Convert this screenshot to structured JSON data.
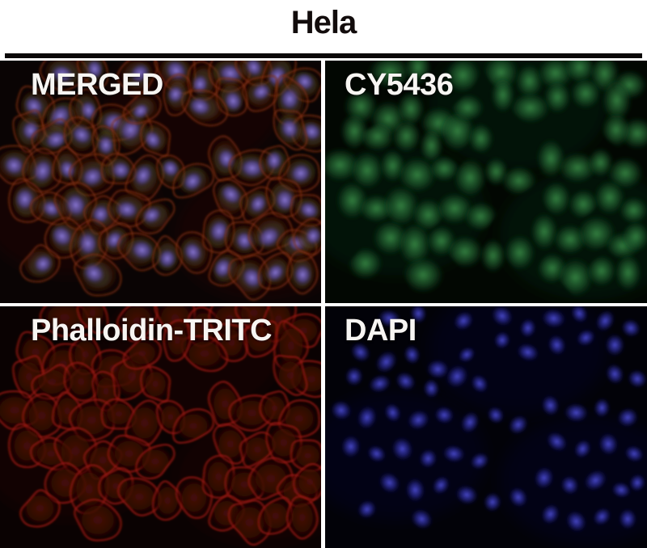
{
  "figure": {
    "title": "Hela"
  },
  "panels": [
    {
      "id": "merged",
      "label": "MERGED",
      "channel": "merged",
      "bg": "#0a0404"
    },
    {
      "id": "cy5436",
      "label": "CY5436",
      "channel": "green",
      "bg": "#020702"
    },
    {
      "id": "phalloidin-tritc",
      "label": "Phalloidin-TRITC",
      "channel": "red",
      "bg": "#0a0202"
    },
    {
      "id": "dapi",
      "label": "DAPI",
      "channel": "blue",
      "bg": "#020208"
    }
  ],
  "colors": {
    "title_text": "#120c0c",
    "label_text": "#f7f5f2",
    "rule": "#0b0707",
    "merged": {
      "body_core": "rgba(110,48,26,0.50)",
      "body_mid": "rgba(84,32,16,0.40)",
      "rim": "#7c2a14",
      "nucleus_core": "rgba(138,120,216,0.95)",
      "nucleus_mid": "rgba(90,76,176,0.65)",
      "green_tint": "rgba(70,150,80,0.16)",
      "ambient": "rgba(70,20,10,0.18)"
    },
    "green": {
      "core": "rgba(62,150,76,0.85)",
      "mid": "rgba(32,96,48,0.55)",
      "ambient": "rgba(30,90,40,0.14)"
    },
    "red": {
      "core": "rgba(74,14,8,0.92)",
      "mid": "rgba(54,10,6,0.78)",
      "rim": "#8e1a10",
      "ambient": "rgba(70,10,6,0.15)"
    },
    "blue": {
      "core": "rgba(76,76,208,0.95)",
      "mid": "rgba(42,42,152,0.60)",
      "ambient": "rgba(30,30,110,0.12)"
    }
  },
  "cells": [
    [
      20,
      5,
      30,
      22,
      15
    ],
    [
      29,
      3,
      26,
      20,
      80
    ],
    [
      43,
      6,
      28,
      22,
      140
    ],
    [
      55,
      4,
      30,
      24,
      40
    ],
    [
      63,
      9,
      26,
      20,
      100
    ],
    [
      71,
      5,
      32,
      24,
      10
    ],
    [
      79,
      3,
      26,
      20,
      60
    ],
    [
      87,
      6,
      30,
      22,
      120
    ],
    [
      95,
      9,
      26,
      22,
      30
    ],
    [
      90,
      16,
      30,
      24,
      90
    ],
    [
      81,
      13,
      26,
      20,
      150
    ],
    [
      72,
      16,
      28,
      22,
      70
    ],
    [
      63,
      19,
      30,
      22,
      20
    ],
    [
      55,
      14,
      24,
      20,
      110
    ],
    [
      11,
      19,
      28,
      22,
      45
    ],
    [
      19,
      23,
      32,
      24,
      130
    ],
    [
      27,
      20,
      26,
      20,
      75
    ],
    [
      35,
      26,
      30,
      24,
      5
    ],
    [
      9,
      29,
      26,
      22,
      95
    ],
    [
      17,
      32,
      30,
      22,
      160
    ],
    [
      25,
      31,
      28,
      22,
      35
    ],
    [
      33,
      34,
      26,
      20,
      85
    ],
    [
      41,
      29,
      32,
      26,
      125
    ],
    [
      48,
      32,
      26,
      20,
      55
    ],
    [
      44,
      20,
      24,
      18,
      145
    ],
    [
      5,
      43,
      28,
      24,
      25
    ],
    [
      13,
      46,
      32,
      24,
      105
    ],
    [
      21,
      44,
      26,
      20,
      65
    ],
    [
      29,
      47,
      30,
      24,
      155
    ],
    [
      37,
      45,
      26,
      22,
      15
    ],
    [
      45,
      48,
      30,
      22,
      115
    ],
    [
      53,
      45,
      24,
      20,
      50
    ],
    [
      60,
      49,
      28,
      22,
      135
    ],
    [
      8,
      58,
      30,
      24,
      90
    ],
    [
      16,
      61,
      26,
      20,
      30
    ],
    [
      24,
      59,
      32,
      26,
      70
    ],
    [
      32,
      63,
      26,
      22,
      110
    ],
    [
      40,
      61,
      30,
      22,
      10
    ],
    [
      48,
      64,
      26,
      20,
      150
    ],
    [
      20,
      73,
      30,
      24,
      45
    ],
    [
      28,
      76,
      32,
      24,
      85
    ],
    [
      36,
      74,
      26,
      20,
      125
    ],
    [
      44,
      78,
      30,
      24,
      20
    ],
    [
      52,
      81,
      26,
      22,
      100
    ],
    [
      60,
      79,
      28,
      22,
      60
    ],
    [
      13,
      84,
      26,
      22,
      140
    ],
    [
      30,
      88,
      30,
      24,
      35
    ],
    [
      70,
      41,
      28,
      22,
      75
    ],
    [
      78,
      44,
      32,
      24,
      5
    ],
    [
      86,
      42,
      26,
      20,
      95
    ],
    [
      94,
      46,
      28,
      24,
      160
    ],
    [
      72,
      56,
      30,
      22,
      40
    ],
    [
      80,
      59,
      26,
      20,
      120
    ],
    [
      88,
      57,
      30,
      24,
      80
    ],
    [
      96,
      61,
      26,
      20,
      25
    ],
    [
      68,
      71,
      30,
      24,
      105
    ],
    [
      76,
      74,
      26,
      22,
      65
    ],
    [
      84,
      72,
      32,
      24,
      145
    ],
    [
      92,
      76,
      26,
      20,
      15
    ],
    [
      70,
      86,
      28,
      22,
      115
    ],
    [
      78,
      89,
      30,
      24,
      55
    ],
    [
      86,
      87,
      26,
      20,
      135
    ],
    [
      94,
      88,
      28,
      22,
      90
    ],
    [
      97,
      30,
      26,
      22,
      30
    ],
    [
      90,
      28,
      28,
      22,
      70
    ],
    [
      97,
      73,
      24,
      20,
      110
    ]
  ]
}
